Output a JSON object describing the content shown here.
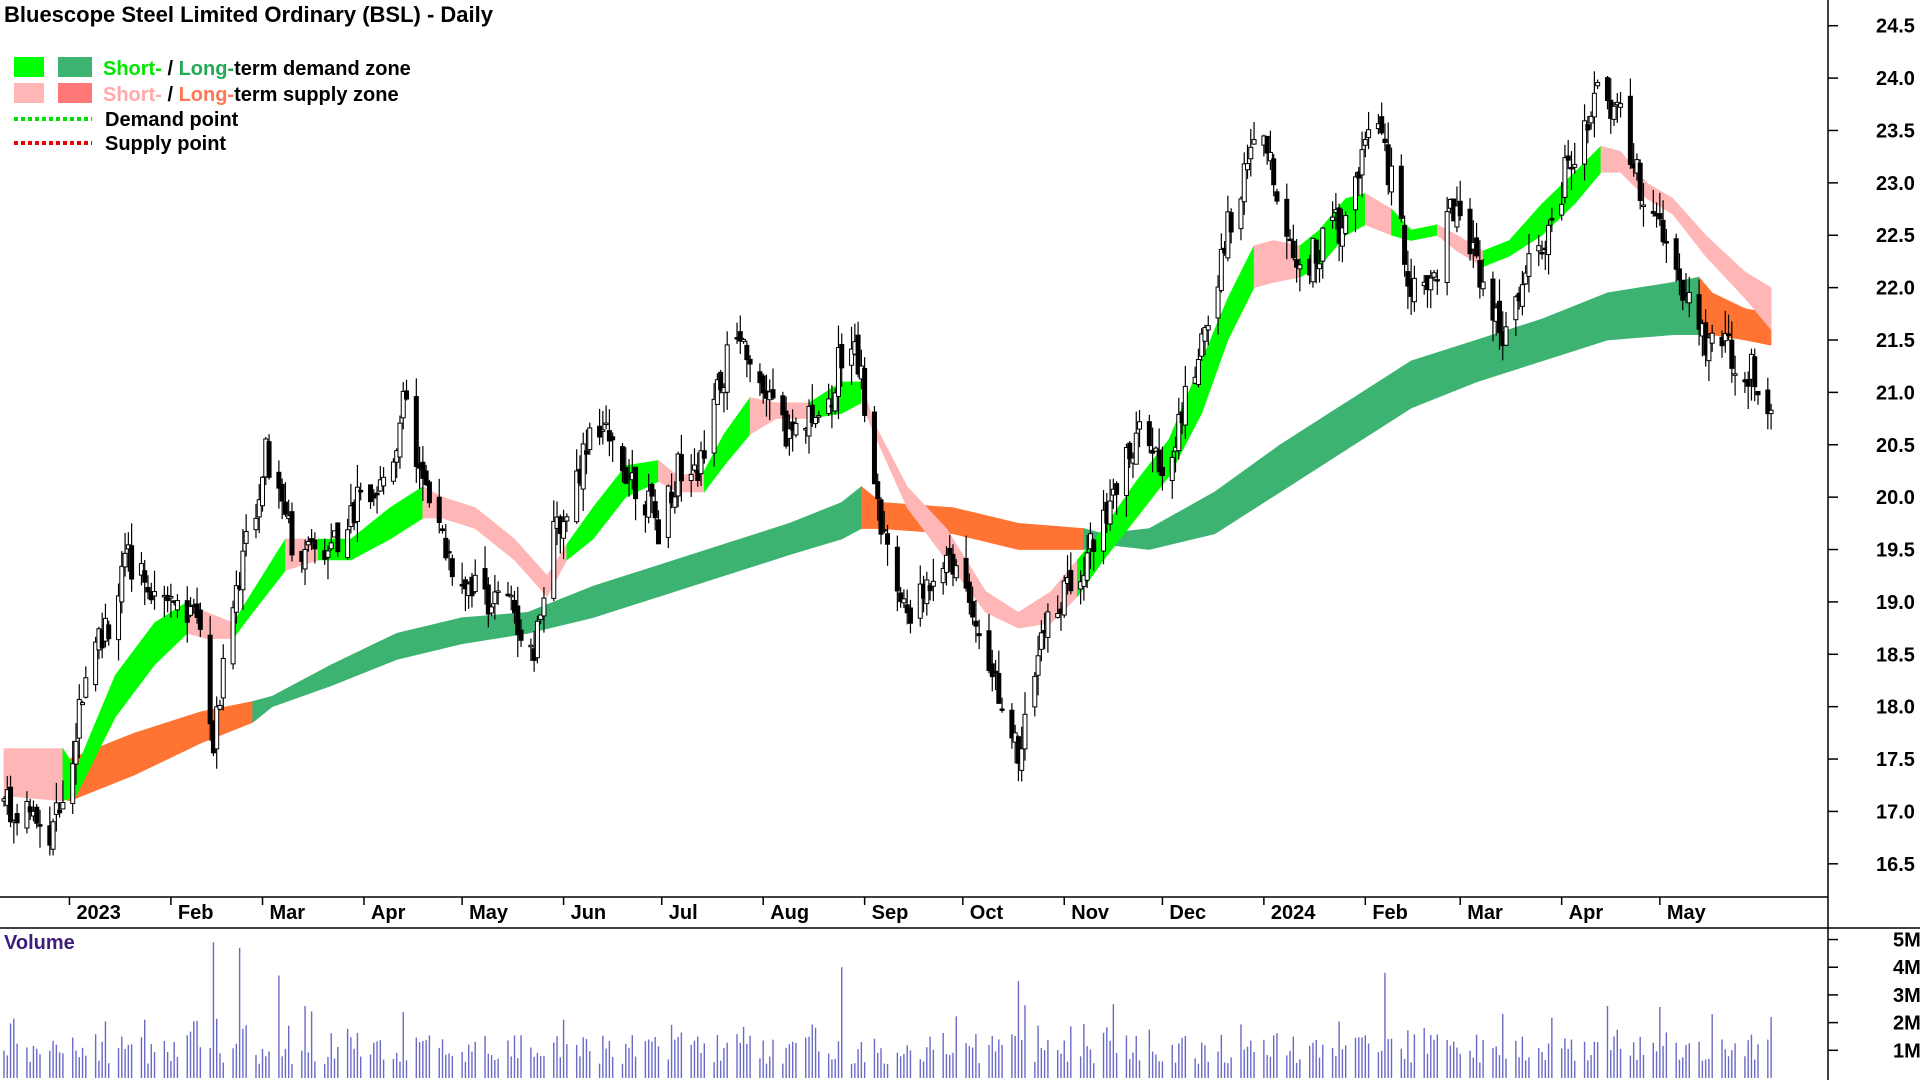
{
  "chart_data": {
    "type": "candlestick",
    "title": "Bluescope Steel Limited Ordinary (BSL) - Daily",
    "legend": {
      "placement": "top-left",
      "items": [
        {
          "short": "Short-",
          "sep": " / ",
          "long": "Long-",
          "rest": "term demand zone",
          "short_color": "#00ff00",
          "long_color": "#3cb371",
          "text_short_color": "#00e600",
          "text_long_color": "#22aa55"
        },
        {
          "short": "Short-",
          "sep": " / ",
          "long": "Long-",
          "rest": "term supply zone",
          "short_color": "#ffb6b6",
          "long_color": "#ff7777",
          "text_short_color": "#ffaaaa",
          "text_long_color": "#ff7755"
        },
        {
          "label": "Demand point",
          "line_color": "#00dd00"
        },
        {
          "label": "Supply point",
          "line_color": "#ee0000"
        }
      ]
    },
    "x_axis": {
      "ticks": [
        {
          "label": "2023",
          "day": 20
        },
        {
          "label": "Feb",
          "day": 51
        },
        {
          "label": "Mar",
          "day": 79
        },
        {
          "label": "Apr",
          "day": 110
        },
        {
          "label": "May",
          "day": 140
        },
        {
          "label": "Jun",
          "day": 171
        },
        {
          "label": "Jul",
          "day": 201
        },
        {
          "label": "Aug",
          "day": 232
        },
        {
          "label": "Sep",
          "day": 263
        },
        {
          "label": "Oct",
          "day": 293
        },
        {
          "label": "Nov",
          "day": 324
        },
        {
          "label": "Dec",
          "day": 354
        },
        {
          "label": "2024",
          "day": 385
        },
        {
          "label": "Feb",
          "day": 416
        },
        {
          "label": "Mar",
          "day": 445
        },
        {
          "label": "Apr",
          "day": 476
        },
        {
          "label": "May",
          "day": 506
        }
      ],
      "range_days": [
        0,
        547
      ]
    },
    "y_axis": {
      "range": [
        16.25,
        24.65
      ],
      "ticks": [
        16.5,
        17.0,
        17.5,
        18.0,
        18.5,
        19.0,
        19.5,
        20.0,
        20.5,
        21.0,
        21.5,
        22.0,
        22.5,
        23.0,
        23.5,
        24.0,
        24.5
      ],
      "tick_labels": [
        "16.5",
        "17.0",
        "17.5",
        "18.0",
        "18.5",
        "19.0",
        "19.5",
        "20.0",
        "20.5",
        "21.0",
        "21.5",
        "22.0",
        "22.5",
        "23.0",
        "23.5",
        "24.0",
        "24.5"
      ]
    },
    "price_anchors": [
      [
        0,
        17.1
      ],
      [
        8,
        16.9
      ],
      [
        14,
        16.7
      ],
      [
        20,
        17.4
      ],
      [
        26,
        18.6
      ],
      [
        32,
        18.8
      ],
      [
        38,
        19.4
      ],
      [
        44,
        19.2
      ],
      [
        50,
        19.1
      ],
      [
        56,
        18.9
      ],
      [
        60,
        18.7
      ],
      [
        64,
        17.6
      ],
      [
        68,
        18.6
      ],
      [
        72,
        19.3
      ],
      [
        76,
        19.8
      ],
      [
        80,
        20.4
      ],
      [
        84,
        20.1
      ],
      [
        88,
        19.6
      ],
      [
        92,
        19.4
      ],
      [
        96,
        19.5
      ],
      [
        100,
        19.6
      ],
      [
        104,
        19.7
      ],
      [
        108,
        20.0
      ],
      [
        112,
        19.8
      ],
      [
        116,
        20.2
      ],
      [
        120,
        20.5
      ],
      [
        124,
        21.2
      ],
      [
        126,
        20.4
      ],
      [
        130,
        19.8
      ],
      [
        134,
        19.6
      ],
      [
        138,
        19.3
      ],
      [
        142,
        19.2
      ],
      [
        146,
        19.1
      ],
      [
        150,
        19.0
      ],
      [
        154,
        19.0
      ],
      [
        158,
        18.8
      ],
      [
        162,
        18.6
      ],
      [
        164,
        19.0
      ],
      [
        168,
        19.6
      ],
      [
        172,
        19.9
      ],
      [
        176,
        20.3
      ],
      [
        180,
        20.8
      ],
      [
        184,
        20.6
      ],
      [
        188,
        20.4
      ],
      [
        192,
        20.2
      ],
      [
        196,
        20.0
      ],
      [
        200,
        19.7
      ],
      [
        204,
        20.1
      ],
      [
        208,
        20.4
      ],
      [
        212,
        20.2
      ],
      [
        216,
        20.8
      ],
      [
        220,
        21.2
      ],
      [
        224,
        21.6
      ],
      [
        228,
        21.4
      ],
      [
        232,
        21.0
      ],
      [
        236,
        20.8
      ],
      [
        240,
        20.6
      ],
      [
        244,
        20.7
      ],
      [
        248,
        20.8
      ],
      [
        252,
        20.9
      ],
      [
        256,
        21.4
      ],
      [
        260,
        21.6
      ],
      [
        264,
        20.6
      ],
      [
        268,
        19.7
      ],
      [
        272,
        19.1
      ],
      [
        276,
        18.9
      ],
      [
        280,
        19.0
      ],
      [
        284,
        19.3
      ],
      [
        288,
        19.5
      ],
      [
        292,
        19.3
      ],
      [
        296,
        19.0
      ],
      [
        300,
        18.6
      ],
      [
        304,
        18.2
      ],
      [
        308,
        17.7
      ],
      [
        310,
        17.6
      ],
      [
        314,
        18.2
      ],
      [
        318,
        18.7
      ],
      [
        322,
        19.0
      ],
      [
        326,
        19.2
      ],
      [
        330,
        19.4
      ],
      [
        334,
        19.7
      ],
      [
        338,
        19.9
      ],
      [
        342,
        20.3
      ],
      [
        346,
        20.6
      ],
      [
        350,
        20.4
      ],
      [
        354,
        20.3
      ],
      [
        358,
        20.6
      ],
      [
        362,
        21.0
      ],
      [
        366,
        21.5
      ],
      [
        370,
        21.9
      ],
      [
        374,
        22.6
      ],
      [
        378,
        23.0
      ],
      [
        382,
        23.3
      ],
      [
        386,
        23.3
      ],
      [
        390,
        22.9
      ],
      [
        394,
        22.4
      ],
      [
        398,
        22.2
      ],
      [
        402,
        22.4
      ],
      [
        406,
        22.6
      ],
      [
        410,
        22.6
      ],
      [
        414,
        23.2
      ],
      [
        418,
        23.6
      ],
      [
        422,
        23.3
      ],
      [
        426,
        22.7
      ],
      [
        430,
        22.0
      ],
      [
        434,
        21.9
      ],
      [
        438,
        22.2
      ],
      [
        442,
        22.8
      ],
      [
        446,
        22.6
      ],
      [
        450,
        22.3
      ],
      [
        454,
        21.8
      ],
      [
        458,
        21.6
      ],
      [
        462,
        21.8
      ],
      [
        466,
        22.2
      ],
      [
        470,
        22.4
      ],
      [
        474,
        22.7
      ],
      [
        478,
        23.2
      ],
      [
        482,
        23.5
      ],
      [
        486,
        23.8
      ],
      [
        490,
        23.8
      ],
      [
        494,
        23.6
      ],
      [
        498,
        23.2
      ],
      [
        502,
        22.8
      ],
      [
        506,
        22.5
      ],
      [
        510,
        22.2
      ],
      [
        514,
        21.9
      ],
      [
        518,
        21.6
      ],
      [
        522,
        21.4
      ],
      [
        526,
        21.5
      ],
      [
        530,
        21.3
      ],
      [
        534,
        21.2
      ],
      [
        538,
        21.0
      ],
      [
        540,
        20.9
      ]
    ],
    "short_zone": [
      {
        "day": 0,
        "top": 17.6,
        "bot": 17.15,
        "kind": "supply"
      },
      {
        "day": 18,
        "top": 17.6,
        "bot": 17.1,
        "kind": "supply"
      },
      {
        "day": 22,
        "top": 17.4,
        "bot": 17.15,
        "kind": "demand"
      },
      {
        "day": 34,
        "top": 18.3,
        "bot": 17.9,
        "kind": "demand"
      },
      {
        "day": 46,
        "top": 18.8,
        "bot": 18.4,
        "kind": "demand"
      },
      {
        "day": 56,
        "top": 19.0,
        "bot": 18.7,
        "kind": "demand"
      },
      {
        "day": 62,
        "top": 18.9,
        "bot": 18.65,
        "kind": "supply"
      },
      {
        "day": 70,
        "top": 18.8,
        "bot": 18.65,
        "kind": "supply"
      },
      {
        "day": 76,
        "top": 19.1,
        "bot": 18.9,
        "kind": "demand"
      },
      {
        "day": 86,
        "top": 19.6,
        "bot": 19.3,
        "kind": "demand"
      },
      {
        "day": 96,
        "top": 19.6,
        "bot": 19.4,
        "kind": "supply"
      },
      {
        "day": 106,
        "top": 19.6,
        "bot": 19.4,
        "kind": "demand"
      },
      {
        "day": 118,
        "top": 19.9,
        "bot": 19.6,
        "kind": "demand"
      },
      {
        "day": 128,
        "top": 20.1,
        "bot": 19.8,
        "kind": "demand"
      },
      {
        "day": 134,
        "top": 20.0,
        "bot": 19.8,
        "kind": "supply"
      },
      {
        "day": 144,
        "top": 19.9,
        "bot": 19.7,
        "kind": "supply"
      },
      {
        "day": 156,
        "top": 19.6,
        "bot": 19.4,
        "kind": "supply"
      },
      {
        "day": 166,
        "top": 19.25,
        "bot": 19.05,
        "kind": "supply"
      },
      {
        "day": 172,
        "top": 19.55,
        "bot": 19.4,
        "kind": "supply"
      },
      {
        "day": 180,
        "top": 19.9,
        "bot": 19.6,
        "kind": "demand"
      },
      {
        "day": 190,
        "top": 20.3,
        "bot": 20.0,
        "kind": "demand"
      },
      {
        "day": 200,
        "top": 20.35,
        "bot": 20.15,
        "kind": "demand"
      },
      {
        "day": 206,
        "top": 20.2,
        "bot": 20.05,
        "kind": "supply"
      },
      {
        "day": 214,
        "top": 20.25,
        "bot": 20.05,
        "kind": "supply"
      },
      {
        "day": 220,
        "top": 20.6,
        "bot": 20.3,
        "kind": "demand"
      },
      {
        "day": 228,
        "top": 20.95,
        "bot": 20.6,
        "kind": "demand"
      },
      {
        "day": 236,
        "top": 20.9,
        "bot": 20.75,
        "kind": "supply"
      },
      {
        "day": 246,
        "top": 20.9,
        "bot": 20.75,
        "kind": "supply"
      },
      {
        "day": 256,
        "top": 21.1,
        "bot": 20.8,
        "kind": "demand"
      },
      {
        "day": 262,
        "top": 21.1,
        "bot": 20.9,
        "kind": "demand"
      },
      {
        "day": 266,
        "top": 20.7,
        "bot": 20.6,
        "kind": "supply"
      },
      {
        "day": 276,
        "top": 20.1,
        "bot": 19.9,
        "kind": "supply"
      },
      {
        "day": 288,
        "top": 19.7,
        "bot": 19.4,
        "kind": "supply"
      },
      {
        "day": 300,
        "top": 19.1,
        "bot": 18.9,
        "kind": "supply"
      },
      {
        "day": 310,
        "top": 18.9,
        "bot": 18.75,
        "kind": "supply"
      },
      {
        "day": 320,
        "top": 19.1,
        "bot": 18.8,
        "kind": "supply"
      },
      {
        "day": 328,
        "top": 19.4,
        "bot": 19.05,
        "kind": "supply"
      },
      {
        "day": 336,
        "top": 19.7,
        "bot": 19.4,
        "kind": "demand"
      },
      {
        "day": 346,
        "top": 20.15,
        "bot": 19.8,
        "kind": "demand"
      },
      {
        "day": 356,
        "top": 20.55,
        "bot": 20.2,
        "kind": "demand"
      },
      {
        "day": 366,
        "top": 21.3,
        "bot": 20.8,
        "kind": "demand"
      },
      {
        "day": 374,
        "top": 21.9,
        "bot": 21.5,
        "kind": "demand"
      },
      {
        "day": 382,
        "top": 22.4,
        "bot": 22.0,
        "kind": "demand"
      },
      {
        "day": 388,
        "top": 22.45,
        "bot": 22.05,
        "kind": "supply"
      },
      {
        "day": 396,
        "top": 22.4,
        "bot": 22.1,
        "kind": "supply"
      },
      {
        "day": 402,
        "top": 22.55,
        "bot": 22.2,
        "kind": "demand"
      },
      {
        "day": 410,
        "top": 22.85,
        "bot": 22.5,
        "kind": "demand"
      },
      {
        "day": 416,
        "top": 22.9,
        "bot": 22.6,
        "kind": "demand"
      },
      {
        "day": 424,
        "top": 22.75,
        "bot": 22.5,
        "kind": "supply"
      },
      {
        "day": 430,
        "top": 22.55,
        "bot": 22.45,
        "kind": "demand"
      },
      {
        "day": 438,
        "top": 22.6,
        "bot": 22.5,
        "kind": "demand"
      },
      {
        "day": 444,
        "top": 22.5,
        "bot": 22.35,
        "kind": "supply"
      },
      {
        "day": 452,
        "top": 22.35,
        "bot": 22.2,
        "kind": "supply"
      },
      {
        "day": 460,
        "top": 22.45,
        "bot": 22.3,
        "kind": "demand"
      },
      {
        "day": 470,
        "top": 22.8,
        "bot": 22.5,
        "kind": "demand"
      },
      {
        "day": 480,
        "top": 23.1,
        "bot": 22.8,
        "kind": "demand"
      },
      {
        "day": 488,
        "top": 23.35,
        "bot": 23.1,
        "kind": "demand"
      },
      {
        "day": 494,
        "top": 23.3,
        "bot": 23.1,
        "kind": "supply"
      },
      {
        "day": 502,
        "top": 23.0,
        "bot": 22.85,
        "kind": "supply"
      },
      {
        "day": 510,
        "top": 22.85,
        "bot": 22.7,
        "kind": "supply"
      },
      {
        "day": 520,
        "top": 22.5,
        "bot": 22.3,
        "kind": "supply"
      },
      {
        "day": 532,
        "top": 22.15,
        "bot": 21.9,
        "kind": "supply"
      },
      {
        "day": 540,
        "top": 22.0,
        "bot": 21.6,
        "kind": "supply"
      }
    ],
    "long_zone": [
      {
        "day": 0,
        "top": 17.55,
        "bot": 17.3,
        "kind": "supply"
      },
      {
        "day": 20,
        "top": 17.5,
        "bot": 17.1,
        "kind": "supply"
      },
      {
        "day": 40,
        "top": 17.75,
        "bot": 17.35,
        "kind": "supply"
      },
      {
        "day": 60,
        "top": 17.95,
        "bot": 17.65,
        "kind": "supply"
      },
      {
        "day": 76,
        "top": 18.05,
        "bot": 17.85,
        "kind": "supply"
      },
      {
        "day": 82,
        "top": 18.1,
        "bot": 18.0,
        "kind": "demand"
      },
      {
        "day": 100,
        "top": 18.4,
        "bot": 18.2,
        "kind": "demand"
      },
      {
        "day": 120,
        "top": 18.7,
        "bot": 18.45,
        "kind": "demand"
      },
      {
        "day": 140,
        "top": 18.85,
        "bot": 18.6,
        "kind": "demand"
      },
      {
        "day": 160,
        "top": 18.9,
        "bot": 18.7,
        "kind": "demand"
      },
      {
        "day": 180,
        "top": 19.15,
        "bot": 18.85,
        "kind": "demand"
      },
      {
        "day": 200,
        "top": 19.35,
        "bot": 19.05,
        "kind": "demand"
      },
      {
        "day": 220,
        "top": 19.55,
        "bot": 19.25,
        "kind": "demand"
      },
      {
        "day": 240,
        "top": 19.75,
        "bot": 19.45,
        "kind": "demand"
      },
      {
        "day": 256,
        "top": 19.95,
        "bot": 19.6,
        "kind": "demand"
      },
      {
        "day": 262,
        "top": 20.1,
        "bot": 19.7,
        "kind": "demand"
      },
      {
        "day": 268,
        "top": 19.95,
        "bot": 19.7,
        "kind": "supply"
      },
      {
        "day": 290,
        "top": 19.9,
        "bot": 19.65,
        "kind": "supply"
      },
      {
        "day": 310,
        "top": 19.75,
        "bot": 19.5,
        "kind": "supply"
      },
      {
        "day": 330,
        "top": 19.7,
        "bot": 19.5,
        "kind": "supply"
      },
      {
        "day": 336,
        "top": 19.65,
        "bot": 19.55,
        "kind": "demand"
      },
      {
        "day": 350,
        "top": 19.7,
        "bot": 19.5,
        "kind": "demand"
      },
      {
        "day": 370,
        "top": 20.05,
        "bot": 19.65,
        "kind": "demand"
      },
      {
        "day": 390,
        "top": 20.5,
        "bot": 20.05,
        "kind": "demand"
      },
      {
        "day": 410,
        "top": 20.9,
        "bot": 20.45,
        "kind": "demand"
      },
      {
        "day": 430,
        "top": 21.3,
        "bot": 20.85,
        "kind": "demand"
      },
      {
        "day": 450,
        "top": 21.5,
        "bot": 21.1,
        "kind": "demand"
      },
      {
        "day": 470,
        "top": 21.7,
        "bot": 21.3,
        "kind": "demand"
      },
      {
        "day": 490,
        "top": 21.95,
        "bot": 21.5,
        "kind": "demand"
      },
      {
        "day": 510,
        "top": 22.05,
        "bot": 21.55,
        "kind": "demand"
      },
      {
        "day": 518,
        "top": 22.1,
        "bot": 21.55,
        "kind": "demand"
      },
      {
        "day": 522,
        "top": 21.95,
        "bot": 21.55,
        "kind": "supply"
      },
      {
        "day": 532,
        "top": 21.8,
        "bot": 21.5,
        "kind": "supply"
      },
      {
        "day": 540,
        "top": 21.75,
        "bot": 21.45,
        "kind": "supply"
      }
    ],
    "colors": {
      "short_demand": "#00ff00",
      "long_demand": "#3cb371",
      "short_supply": "#ffb6b6",
      "long_supply": "#ff7433",
      "candle_up": "#ffffff",
      "candle_down": "#000000",
      "volume_bar": "#6a6ac8"
    },
    "volume": {
      "title": "Volume",
      "y_ticks": [
        1,
        2,
        3,
        4,
        5
      ],
      "tick_labels": [
        "1M",
        "2M",
        "3M",
        "4M",
        "5M"
      ],
      "ylim": [
        0,
        5.2
      ],
      "spikes": [
        [
          64,
          4.9
        ],
        [
          72,
          4.7
        ],
        [
          84,
          3.7
        ],
        [
          124,
          4.6
        ],
        [
          166,
          4.9
        ],
        [
          256,
          4.0
        ],
        [
          272,
          4.3
        ],
        [
          310,
          3.5
        ],
        [
          422,
          3.8
        ],
        [
          460,
          3.7
        ],
        [
          490,
          2.6
        ],
        [
          540,
          2.2
        ]
      ]
    },
    "grid": false
  }
}
